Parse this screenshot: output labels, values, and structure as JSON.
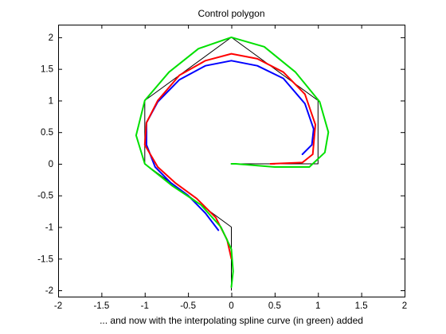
{
  "chart_data": {
    "type": "line",
    "title": "Control polygon",
    "xlabel": "... and now with the interpolating spline curve (in green) added",
    "ylabel": "",
    "xlim": [
      -2,
      2
    ],
    "ylim": [
      -2.1,
      2.2
    ],
    "xticks": [
      -2,
      -1.5,
      -1,
      -0.5,
      0,
      0.5,
      1,
      1.5,
      2
    ],
    "yticks": [
      -2,
      -1.5,
      -1,
      -0.5,
      0,
      0.5,
      1,
      1.5,
      2
    ],
    "xtick_labels": [
      "-2",
      "-1.5",
      "-1",
      "-0.5",
      "0",
      "0.5",
      "1",
      "1.5",
      "2"
    ],
    "ytick_labels": [
      "-2",
      "-1.5",
      "-1",
      "-0.5",
      "0",
      "0.5",
      "1",
      "1.5",
      "2"
    ],
    "grid": false,
    "series": [
      {
        "color": "#000000",
        "points": [
          [
            0,
            -2
          ],
          [
            0,
            -1
          ],
          [
            -1,
            0
          ],
          [
            -1,
            1
          ],
          [
            0,
            2
          ],
          [
            1,
            1
          ],
          [
            1,
            0
          ],
          [
            0,
            0
          ]
        ]
      },
      {
        "color": "#0000ff",
        "points": [
          [
            -0.15,
            -1.05
          ],
          [
            -0.3,
            -0.78
          ],
          [
            -0.5,
            -0.5
          ],
          [
            -0.7,
            -0.3
          ],
          [
            -0.88,
            -0.05
          ],
          [
            -0.98,
            0.3
          ],
          [
            -0.98,
            0.65
          ],
          [
            -0.85,
            0.98
          ],
          [
            -0.6,
            1.33
          ],
          [
            -0.3,
            1.55
          ],
          [
            0,
            1.63
          ],
          [
            0.3,
            1.55
          ],
          [
            0.6,
            1.35
          ],
          [
            0.85,
            0.95
          ],
          [
            0.95,
            0.55
          ],
          [
            0.93,
            0.3
          ],
          [
            0.82,
            0.15
          ]
        ]
      },
      {
        "color": "#ff0000",
        "points": [
          [
            0,
            -1.5
          ],
          [
            -0.05,
            -1.2
          ],
          [
            -0.18,
            -0.85
          ],
          [
            -0.4,
            -0.55
          ],
          [
            -0.65,
            -0.3
          ],
          [
            -0.85,
            -0.05
          ],
          [
            -1.0,
            0.3
          ],
          [
            -0.98,
            0.65
          ],
          [
            -0.85,
            1.0
          ],
          [
            -0.6,
            1.4
          ],
          [
            -0.3,
            1.63
          ],
          [
            0,
            1.74
          ],
          [
            0.3,
            1.66
          ],
          [
            0.6,
            1.45
          ],
          [
            0.85,
            1.1
          ],
          [
            0.97,
            0.62
          ],
          [
            0.94,
            0.15
          ],
          [
            0.82,
            0.02
          ],
          [
            0.45,
            0.0
          ],
          [
            0.5,
            0.0
          ]
        ]
      },
      {
        "color": "#00e000",
        "points": [
          [
            0,
            -1.95
          ],
          [
            0.02,
            -1.7
          ],
          [
            0.0,
            -1.35
          ],
          [
            -0.12,
            -1.0
          ],
          [
            -0.35,
            -0.65
          ],
          [
            -0.68,
            -0.35
          ],
          [
            -1.0,
            0.0
          ],
          [
            -1.1,
            0.45
          ],
          [
            -1.0,
            1.0
          ],
          [
            -0.72,
            1.45
          ],
          [
            -0.38,
            1.82
          ],
          [
            0,
            2.0
          ],
          [
            0.38,
            1.85
          ],
          [
            0.74,
            1.45
          ],
          [
            1.02,
            0.98
          ],
          [
            1.12,
            0.5
          ],
          [
            1.08,
            0.18
          ],
          [
            0.9,
            -0.05
          ],
          [
            0.5,
            -0.05
          ],
          [
            0.05,
            0.0
          ],
          [
            0,
            0.0
          ]
        ]
      }
    ]
  }
}
